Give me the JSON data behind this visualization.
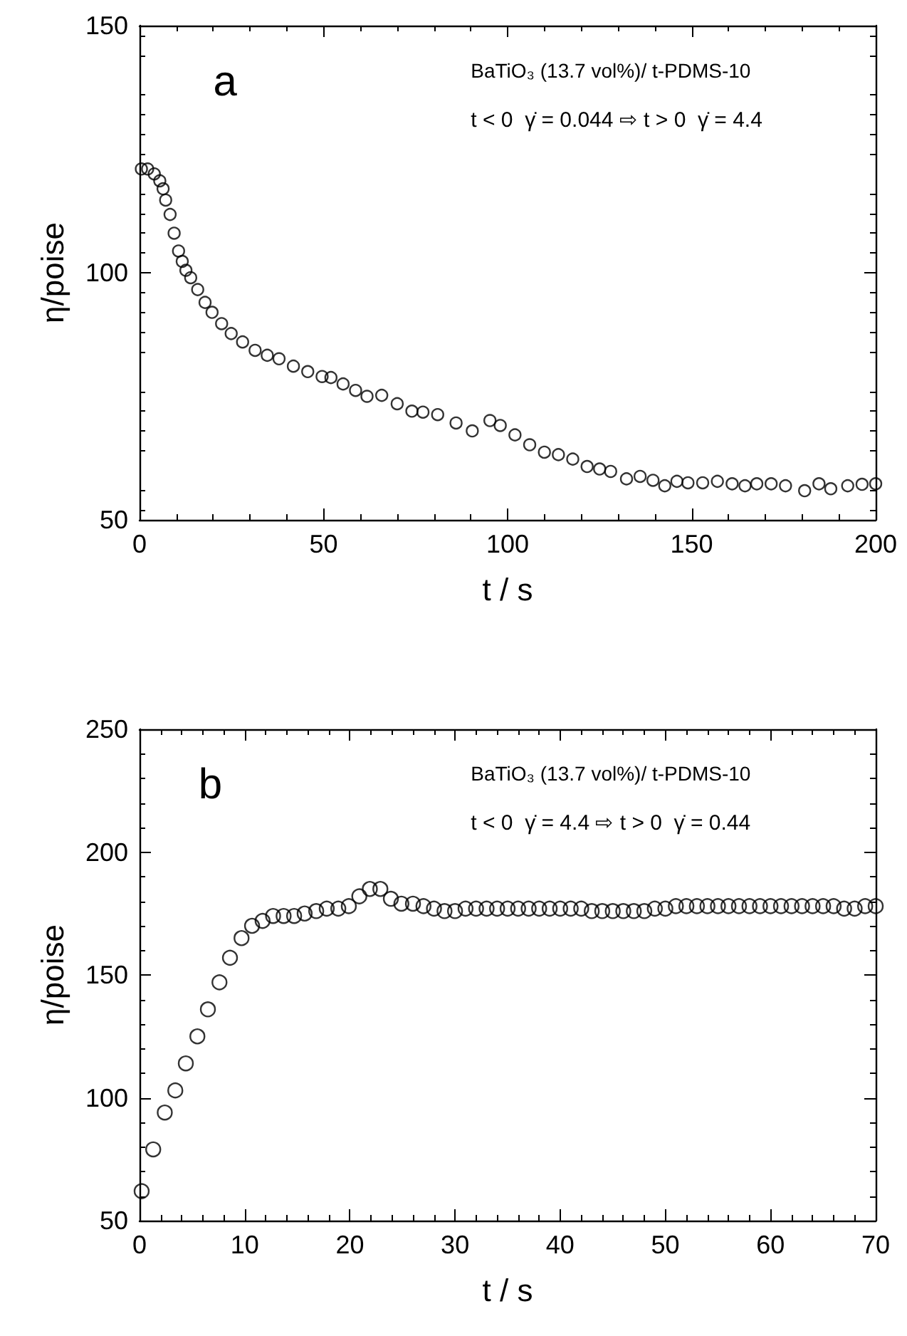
{
  "chart_data": [
    {
      "type": "scatter",
      "xlabel": "t / s",
      "ylabel": "η/poise",
      "marker": "circle",
      "annotations": [
        "a",
        "BaTiO₃ (13.7 vol%)/ t-PDMS-10",
        "t < 0  γ̇ = 0.044 ⇨ t > 0  γ̇ = 4.4"
      ],
      "xlim": [
        0,
        200
      ],
      "xticks": [
        0,
        50,
        100,
        150,
        200
      ],
      "ylim": [
        50,
        150
      ],
      "yticks": [
        50,
        100,
        150
      ],
      "series": [
        {
          "color": "#000000",
          "x": [
            0.5,
            2.2,
            4,
            5.5,
            6.4,
            7.1,
            8.3,
            9.4,
            10.6,
            11.6,
            12.6,
            13.9,
            15.8,
            17.8,
            19.7,
            22.3,
            24.9,
            28,
            31.4,
            34.7,
            37.9,
            41.8,
            45.7,
            49.6,
            52,
            55.3,
            58.7,
            61.8,
            65.8,
            70,
            74,
            77,
            81,
            86,
            90.4,
            95.2,
            98,
            102,
            106,
            110,
            113.8,
            117.7,
            121.6,
            125,
            128,
            132.3,
            136,
            139.5,
            142.7,
            146,
            149,
            153,
            157,
            161,
            164.5,
            167.7,
            171.6,
            175.5,
            180.7,
            184.6,
            187.8,
            192.4,
            196.3,
            200
          ],
          "values": [
            121,
            121,
            120,
            118.6,
            117,
            114.7,
            111.8,
            108,
            104.4,
            102.3,
            100.5,
            99,
            96.6,
            94,
            92,
            89.7,
            87.7,
            86,
            84.3,
            83.3,
            82.6,
            81.1,
            80,
            79,
            78.8,
            77.5,
            76.2,
            75,
            75.2,
            73.5,
            72,
            71.8,
            71.3,
            69.6,
            68,
            70.1,
            69.1,
            67.2,
            65.2,
            63.7,
            63.2,
            62.3,
            60.8,
            60.3,
            59.8,
            58.3,
            58.8,
            58,
            56.9,
            57.8,
            57.5,
            57.5,
            57.8,
            57.3,
            56.9,
            57.3,
            57.3,
            56.9,
            55.9,
            57.3,
            56.3,
            56.9,
            57.2,
            57.3
          ]
        }
      ]
    },
    {
      "type": "scatter",
      "xlabel": "t / s",
      "ylabel": "η/poise",
      "marker": "circle",
      "annotations": [
        "b",
        "BaTiO₃ (13.7 vol%)/ t-PDMS-10",
        "t < 0  γ̇ = 4.4 ⇨ t > 0  γ̇ = 0.44"
      ],
      "xlim": [
        0,
        70
      ],
      "xticks": [
        0,
        10,
        20,
        30,
        40,
        50,
        60,
        70
      ],
      "ylim": [
        50,
        250
      ],
      "yticks": [
        50,
        100,
        150,
        200,
        250
      ],
      "series": [
        {
          "color": "#000000",
          "x": [
            0.2,
            1.3,
            2.4,
            3.4,
            4.4,
            5.5,
            6.5,
            7.6,
            8.6,
            9.7,
            10.7,
            11.7,
            12.7,
            13.7,
            14.7,
            15.7,
            16.8,
            17.8,
            18.9,
            19.9,
            20.9,
            21.9,
            22.9,
            23.9,
            24.9,
            26,
            27,
            28,
            29,
            30,
            31,
            32,
            33,
            34,
            35,
            36,
            37,
            38,
            39,
            40,
            41,
            42,
            43,
            44,
            45,
            46,
            47,
            48,
            49,
            50,
            51,
            52,
            53,
            54,
            55,
            56,
            57,
            58,
            59,
            60,
            61,
            62,
            63,
            64,
            65,
            66,
            67,
            68,
            69,
            70
          ],
          "values": [
            62,
            79,
            94,
            103,
            114,
            125,
            136,
            147,
            157,
            165,
            170,
            172,
            174,
            174,
            174,
            175,
            176,
            177,
            177,
            178,
            182,
            185,
            185,
            181,
            179,
            179,
            178,
            177,
            176,
            176,
            177,
            177,
            177,
            177,
            177,
            177,
            177,
            177,
            177,
            177,
            177,
            177,
            176,
            176,
            176,
            176,
            176,
            176,
            177,
            177,
            178,
            178,
            178,
            178,
            178,
            178,
            178,
            178,
            178,
            178,
            178,
            178,
            178,
            178,
            178,
            178,
            177,
            177,
            178,
            178
          ]
        }
      ]
    }
  ]
}
